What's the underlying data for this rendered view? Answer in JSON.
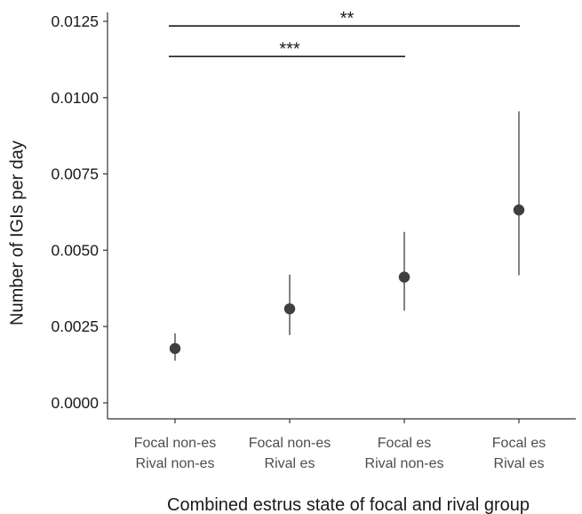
{
  "chart_data": {
    "type": "scatter",
    "title": "",
    "xlabel": "Combined estrus state of focal and rival group",
    "ylabel": "Number of IGIs per day",
    "ylim": [
      -0.00055,
      0.0126
    ],
    "y_ticks": [
      "0.0000",
      "0.0025",
      "0.0050",
      "0.0075",
      "0.0100",
      "0.0125"
    ],
    "y_tick_values": [
      0,
      0.0025,
      0.005,
      0.0075,
      0.01,
      0.0125
    ],
    "categories": [
      [
        "Focal non-es",
        "Rival non-es"
      ],
      [
        "Focal non-es",
        "Rival es"
      ],
      [
        "Focal es",
        "Rival non-es"
      ],
      [
        "Focal es",
        "Rival es"
      ]
    ],
    "series": [
      {
        "values": [
          0.00178,
          0.00308,
          0.00412,
          0.00632
        ],
        "lower": [
          0.00138,
          0.00222,
          0.00302,
          0.00418
        ],
        "upper": [
          0.00228,
          0.0042,
          0.0056,
          0.00955
        ]
      }
    ],
    "grid": false,
    "legend": "none",
    "colors": {
      "point": "#3f3f3f",
      "errorbar": "#3f3f3f",
      "axis": "#333333",
      "bracket": "#1a1a1a"
    },
    "annotations": [
      {
        "from": 0,
        "to": 3,
        "y": 0.01235,
        "label": "**"
      },
      {
        "from": 0,
        "to": 2,
        "y": 0.01135,
        "label": "***"
      }
    ]
  }
}
